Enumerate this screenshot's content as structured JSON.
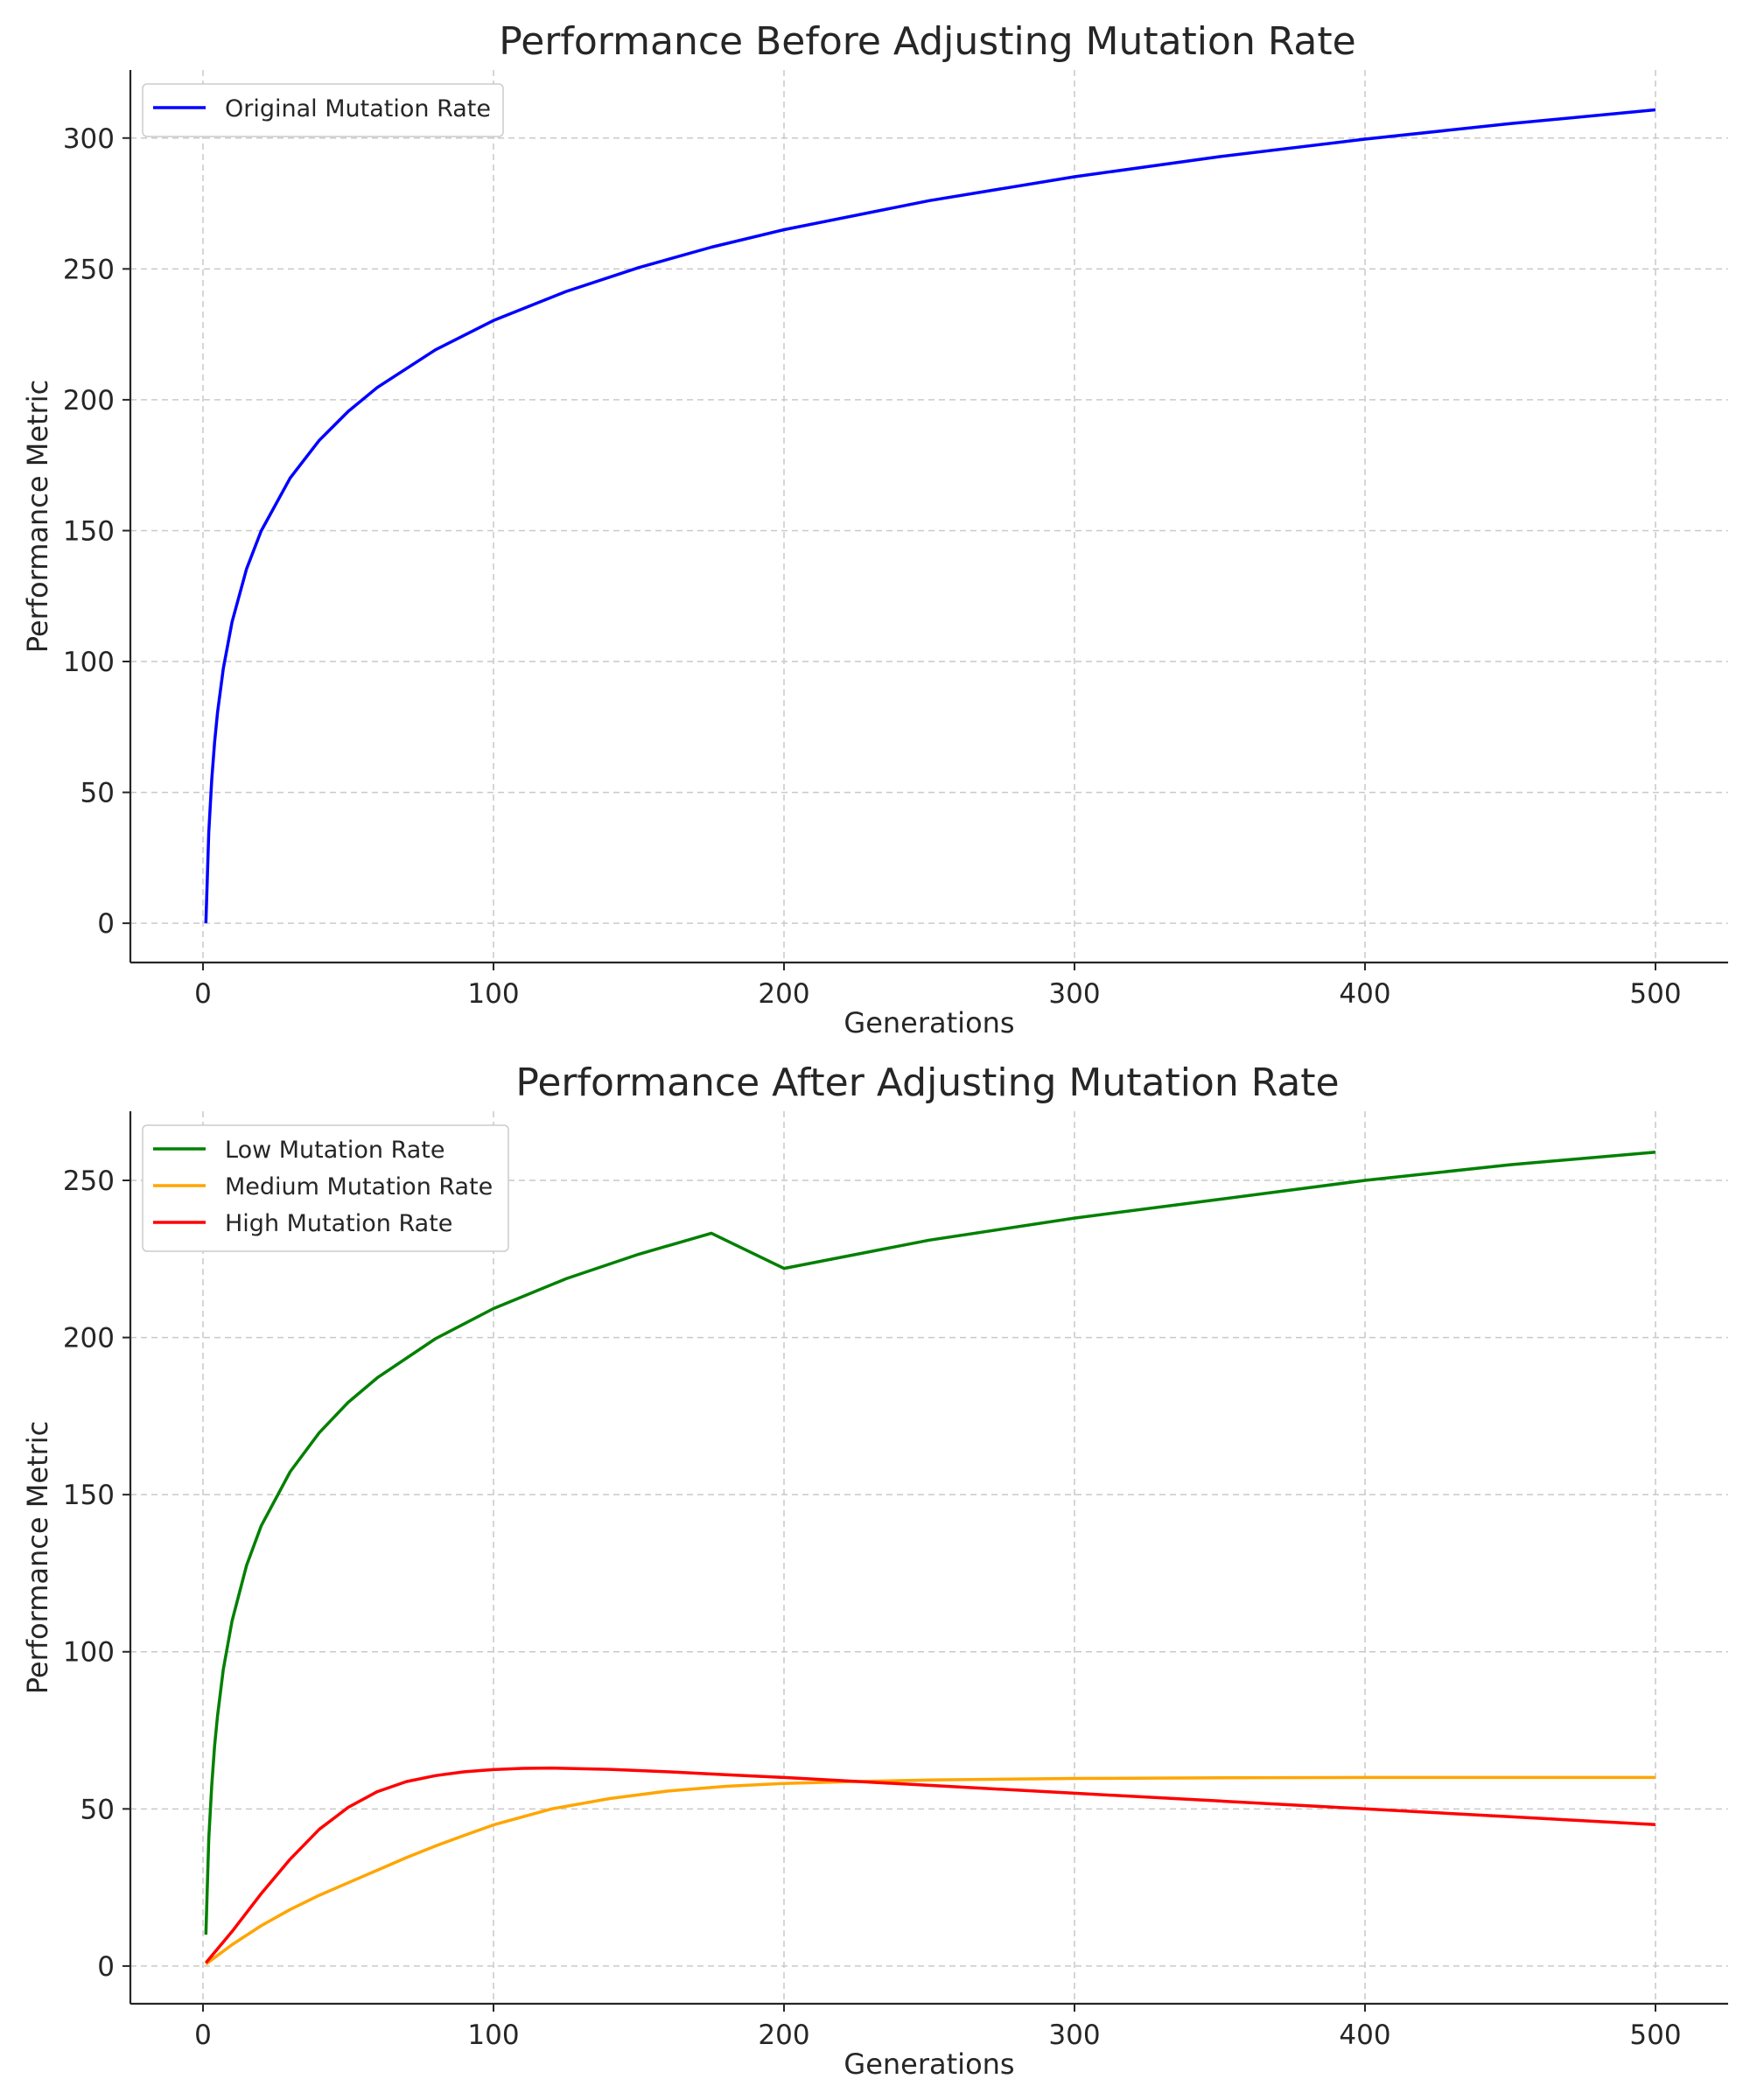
{
  "chart_data": [
    {
      "type": "line",
      "title": "Performance Before Adjusting Mutation Rate",
      "xlabel": "Generations",
      "ylabel": "Performance Metric",
      "xlim": [
        -25,
        525
      ],
      "ylim": [
        -15,
        326
      ],
      "xticks": [
        0,
        100,
        200,
        300,
        400,
        500
      ],
      "yticks": [
        0,
        50,
        100,
        150,
        200,
        250,
        300
      ],
      "grid": true,
      "legend_position": "upper-left",
      "series": [
        {
          "name": "Original Mutation Rate",
          "color": "#0000ff",
          "x": [
            1,
            2,
            3,
            4,
            5,
            7,
            10,
            15,
            20,
            30,
            40,
            50,
            60,
            80,
            100,
            125,
            150,
            175,
            200,
            250,
            300,
            350,
            400,
            450,
            500
          ],
          "y": [
            0,
            34.7,
            54.9,
            69.3,
            80.5,
            97.3,
            115.1,
            135.4,
            149.8,
            170.1,
            184.5,
            195.6,
            204.7,
            219.1,
            230.3,
            241.4,
            250.5,
            258.3,
            265.0,
            276.1,
            285.2,
            292.9,
            299.6,
            305.5,
            310.8
          ]
        }
      ]
    },
    {
      "type": "line",
      "title": "Performance After Adjusting Mutation Rate",
      "xlabel": "Generations",
      "ylabel": "Performance Metric",
      "xlim": [
        -25,
        525
      ],
      "ylim": [
        -12,
        272
      ],
      "xticks": [
        0,
        100,
        200,
        300,
        400,
        500
      ],
      "yticks": [
        0,
        50,
        100,
        150,
        200,
        250
      ],
      "grid": true,
      "legend_position": "upper-left",
      "series": [
        {
          "name": "Low Mutation Rate",
          "color": "#008000",
          "x": [
            1,
            2,
            3,
            4,
            5,
            7,
            10,
            15,
            20,
            30,
            40,
            50,
            60,
            80,
            100,
            125,
            150,
            175,
            200,
            250,
            300,
            350,
            400,
            450,
            500
          ],
          "y": [
            10.0,
            40.5,
            57.5,
            70.2,
            79.6,
            94.4,
            109.8,
            127.5,
            140.0,
            157.3,
            169.7,
            179.4,
            187.2,
            199.6,
            209.2,
            218.7,
            226.5,
            233.2,
            222.0,
            231.0,
            238.0,
            244.0,
            250.0,
            255.0,
            259.0
          ]
        },
        {
          "name": "Medium Mutation Rate",
          "color": "#ffa500",
          "x": [
            1,
            10,
            20,
            30,
            40,
            50,
            60,
            70,
            80,
            90,
            100,
            120,
            140,
            160,
            180,
            200,
            220,
            250,
            300,
            350,
            400,
            450,
            500
          ],
          "y": [
            0.6,
            6.8,
            12.8,
            18.0,
            22.5,
            26.5,
            30.5,
            34.5,
            38.2,
            41.6,
            44.9,
            50.0,
            53.3,
            55.7,
            57.2,
            58.1,
            58.6,
            59.2,
            59.7,
            59.9,
            60.0,
            60.0,
            60.0
          ]
        },
        {
          "name": "High Mutation Rate",
          "color": "#ff0000",
          "x": [
            1,
            10,
            20,
            30,
            40,
            50,
            60,
            70,
            80,
            90,
            100,
            110,
            120,
            140,
            160,
            180,
            200,
            250,
            300,
            350,
            400,
            450,
            500
          ],
          "y": [
            1.0,
            11.0,
            23.0,
            34.0,
            43.5,
            50.5,
            55.5,
            58.7,
            60.6,
            61.8,
            62.5,
            62.9,
            63.0,
            62.6,
            61.8,
            60.9,
            60.0,
            57.5,
            55.0,
            52.5,
            50.0,
            47.5,
            45.0
          ]
        }
      ]
    }
  ]
}
